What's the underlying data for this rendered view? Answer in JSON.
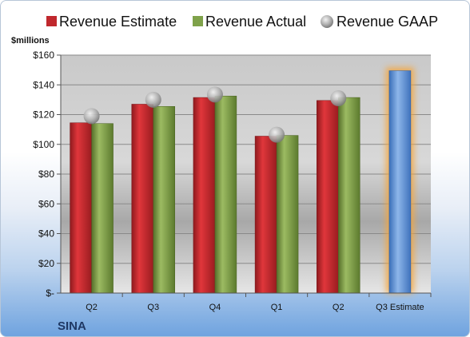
{
  "chart_data": {
    "type": "bar",
    "title": "",
    "ylabel": "$millions",
    "xlabel": "",
    "footer": "SINA",
    "categories": [
      "Q2",
      "Q3",
      "Q4",
      "Q1",
      "Q2",
      "Q3 Estimate"
    ],
    "ylim": [
      0,
      160
    ],
    "yticks": [
      0,
      20,
      40,
      60,
      80,
      100,
      120,
      140,
      160
    ],
    "ytick_labels": [
      "$-",
      "$20",
      "$40",
      "$60",
      "$80",
      "$100",
      "$120",
      "$140",
      "$160"
    ],
    "legend_position": "top",
    "grid": true,
    "series": [
      {
        "name": "Revenue Estimate",
        "kind": "bar",
        "color": "#c0282d",
        "values": [
          114.5,
          127,
          131.5,
          105.5,
          129.5,
          null
        ]
      },
      {
        "name": "Revenue Actual",
        "kind": "bar",
        "color": "#6f8f3a",
        "values": [
          114,
          125.5,
          132.5,
          106,
          131.5,
          null
        ]
      },
      {
        "name": "Revenue GAAP",
        "kind": "marker",
        "color": "#b8b8b8",
        "values": [
          119,
          130,
          133.5,
          106.5,
          131,
          null
        ]
      },
      {
        "name": "",
        "kind": "bar",
        "color": "#5b8fd6",
        "values": [
          null,
          null,
          null,
          null,
          null,
          149.5
        ]
      }
    ]
  }
}
